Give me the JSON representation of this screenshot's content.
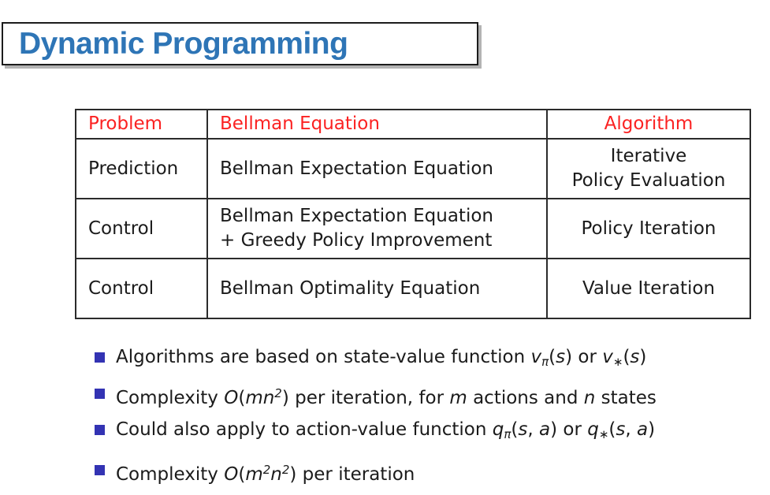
{
  "title": {
    "text": "Dynamic Programming"
  },
  "colors": {
    "title_blue": "#2e75b6",
    "header_red": "#fb2222",
    "bullet_blue": "#3333b3",
    "body_text": "#1b1b1b",
    "table_border": "#2b2b2b"
  },
  "table": {
    "headers": [
      "Problem",
      "Bellman Equation",
      "Algorithm"
    ],
    "rows": [
      {
        "problem": [
          "Prediction"
        ],
        "equation": [
          "Bellman Expectation Equation"
        ],
        "algorithm": [
          "Iterative",
          "Policy Evaluation"
        ]
      },
      {
        "problem": [
          "Control"
        ],
        "equation": [
          "Bellman Expectation Equation",
          "+ Greedy Policy Improvement"
        ],
        "algorithm": [
          "Policy Iteration"
        ]
      },
      {
        "problem": [
          "Control"
        ],
        "equation": [
          "Bellman Optimality Equation"
        ],
        "algorithm": [
          "Value Iteration"
        ]
      }
    ]
  },
  "bullets": [
    {
      "segments": [
        {
          "s": "text",
          "v": "Algorithms are based on state-value function "
        },
        {
          "s": "var",
          "v": "v"
        },
        {
          "s": "sub",
          "v": "π"
        },
        {
          "s": "text",
          "v": "("
        },
        {
          "s": "var",
          "v": "s"
        },
        {
          "s": "text",
          "v": ") or "
        },
        {
          "s": "var",
          "v": "v"
        },
        {
          "s": "sub",
          "v": "∗"
        },
        {
          "s": "text",
          "v": "("
        },
        {
          "s": "var",
          "v": "s"
        },
        {
          "s": "text",
          "v": ")"
        }
      ]
    },
    {
      "segments": [
        {
          "s": "text",
          "v": "Complexity "
        },
        {
          "s": "var",
          "v": "O"
        },
        {
          "s": "text",
          "v": "("
        },
        {
          "s": "var",
          "v": "mn"
        },
        {
          "s": "sup",
          "v": "2"
        },
        {
          "s": "text",
          "v": ") per iteration, for "
        },
        {
          "s": "var",
          "v": "m"
        },
        {
          "s": "text",
          "v": " actions and "
        },
        {
          "s": "var",
          "v": "n"
        },
        {
          "s": "text",
          "v": " states"
        }
      ]
    },
    {
      "segments": [
        {
          "s": "text",
          "v": "Could also apply to action-value function "
        },
        {
          "s": "var",
          "v": "q"
        },
        {
          "s": "sub",
          "v": "π"
        },
        {
          "s": "text",
          "v": "("
        },
        {
          "s": "var",
          "v": "s"
        },
        {
          "s": "text",
          "v": ", "
        },
        {
          "s": "var",
          "v": "a"
        },
        {
          "s": "text",
          "v": ") or "
        },
        {
          "s": "var",
          "v": "q"
        },
        {
          "s": "sub",
          "v": "∗"
        },
        {
          "s": "text",
          "v": "("
        },
        {
          "s": "var",
          "v": "s"
        },
        {
          "s": "text",
          "v": ", "
        },
        {
          "s": "var",
          "v": "a"
        },
        {
          "s": "text",
          "v": ")"
        }
      ]
    },
    {
      "segments": [
        {
          "s": "text",
          "v": "Complexity "
        },
        {
          "s": "var",
          "v": "O"
        },
        {
          "s": "text",
          "v": "("
        },
        {
          "s": "var",
          "v": "m"
        },
        {
          "s": "sup",
          "v": "2"
        },
        {
          "s": "var",
          "v": "n"
        },
        {
          "s": "sup",
          "v": "2"
        },
        {
          "s": "text",
          "v": ") per iteration"
        }
      ]
    }
  ]
}
